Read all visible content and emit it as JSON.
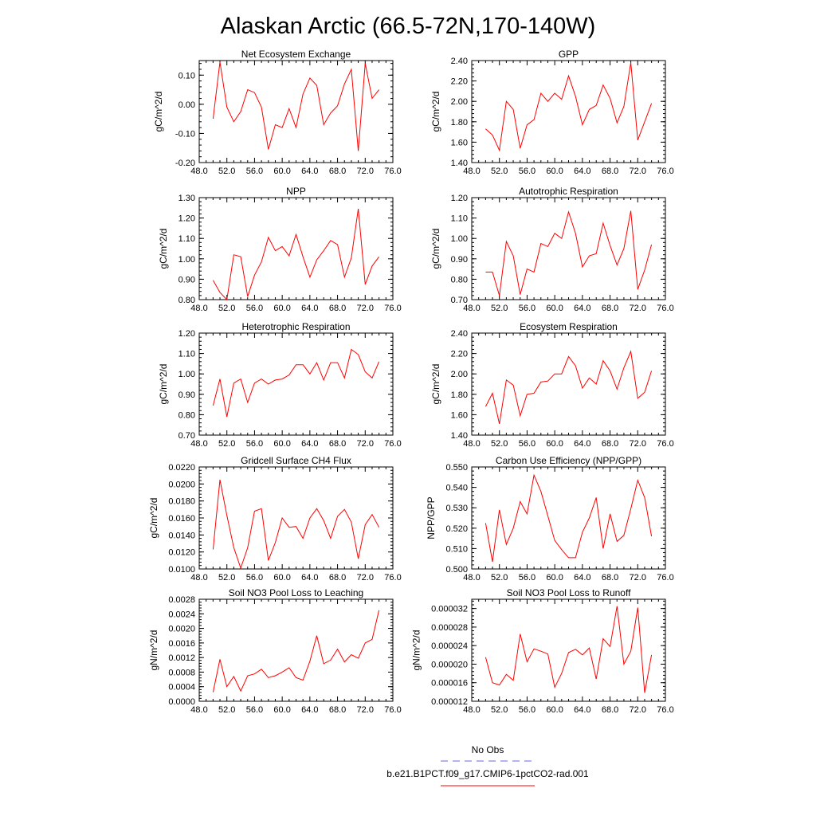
{
  "figure": {
    "title": "Alaskan Arctic (66.5-72N,170-140W)"
  },
  "legend": {
    "entries": [
      {
        "label": "No Obs",
        "color": "#6a6ad8",
        "dash": true
      },
      {
        "label": "b.e21.B1PCT.f09_g17.CMIP6-1pctCO2-rad.001",
        "color": "#ff0000",
        "dash": false
      }
    ]
  },
  "colors": {
    "model": "#ff0000",
    "obs": "#6a6ad8"
  },
  "chart_data": [
    {
      "type": "line",
      "title": "Net Ecosystem Exchange",
      "ylabel": "gC/m^2/d",
      "xlim": [
        48,
        76
      ],
      "ylim": [
        -0.2,
        0.15
      ],
      "x_ticks": [
        "48.0",
        "52.0",
        "56.0",
        "60.0",
        "64.0",
        "68.0",
        "72.0",
        "76.0"
      ],
      "y_ticks": [
        {
          "v": -0.2,
          "l": "-0.20"
        },
        {
          "v": -0.1,
          "l": "-0.10"
        },
        {
          "v": 0.0,
          "l": "0.00"
        },
        {
          "v": 0.1,
          "l": "0.10"
        }
      ],
      "series": [
        {
          "x": [
            50,
            51,
            52,
            53,
            54,
            55,
            56,
            57,
            58,
            59,
            60,
            61,
            62,
            63,
            64,
            65,
            66,
            67,
            68,
            69,
            70,
            71,
            72,
            73,
            74
          ],
          "values": [
            -0.05,
            0.145,
            -0.01,
            -0.06,
            -0.025,
            0.05,
            0.04,
            -0.01,
            -0.155,
            -0.07,
            -0.08,
            -0.015,
            -0.08,
            0.035,
            0.09,
            0.065,
            -0.07,
            -0.03,
            -0.005,
            0.07,
            0.12,
            -0.16,
            0.14,
            0.02,
            0.05
          ]
        }
      ]
    },
    {
      "type": "line",
      "title": "GPP",
      "ylabel": "gC/m^2/d",
      "xlim": [
        48,
        76
      ],
      "ylim": [
        1.4,
        2.4
      ],
      "x_ticks": [
        "48.0",
        "52.0",
        "56.0",
        "60.0",
        "64.0",
        "68.0",
        "72.0",
        "76.0"
      ],
      "y_ticks": [
        {
          "v": 1.4,
          "l": "1.40"
        },
        {
          "v": 1.6,
          "l": "1.60"
        },
        {
          "v": 1.8,
          "l": "1.80"
        },
        {
          "v": 2.0,
          "l": "2.00"
        },
        {
          "v": 2.2,
          "l": "2.20"
        },
        {
          "v": 2.4,
          "l": "2.40"
        }
      ],
      "series": [
        {
          "x": [
            50,
            51,
            52,
            53,
            54,
            55,
            56,
            57,
            58,
            59,
            60,
            61,
            62,
            63,
            64,
            65,
            66,
            67,
            68,
            69,
            70,
            71,
            72,
            73,
            74
          ],
          "values": [
            1.73,
            1.67,
            1.52,
            2.0,
            1.92,
            1.54,
            1.77,
            1.82,
            2.08,
            2.0,
            2.08,
            2.02,
            2.25,
            2.05,
            1.77,
            1.92,
            1.96,
            2.16,
            2.03,
            1.79,
            1.95,
            2.38,
            1.62,
            1.8,
            1.98
          ]
        }
      ]
    },
    {
      "type": "line",
      "title": "NPP",
      "ylabel": "gC/m^2/d",
      "xlim": [
        48,
        76
      ],
      "ylim": [
        0.8,
        1.3
      ],
      "x_ticks": [
        "48.0",
        "52.0",
        "56.0",
        "60.0",
        "64.0",
        "68.0",
        "72.0",
        "76.0"
      ],
      "y_ticks": [
        {
          "v": 0.8,
          "l": "0.80"
        },
        {
          "v": 0.9,
          "l": "0.90"
        },
        {
          "v": 1.0,
          "l": "1.00"
        },
        {
          "v": 1.1,
          "l": "1.10"
        },
        {
          "v": 1.2,
          "l": "1.20"
        },
        {
          "v": 1.3,
          "l": "1.30"
        }
      ],
      "series": [
        {
          "x": [
            50,
            51,
            52,
            53,
            54,
            55,
            56,
            57,
            58,
            59,
            60,
            61,
            62,
            63,
            64,
            65,
            66,
            67,
            68,
            69,
            70,
            71,
            72,
            73,
            74
          ],
          "values": [
            0.895,
            0.835,
            0.8,
            1.02,
            1.01,
            0.815,
            0.92,
            0.985,
            1.105,
            1.04,
            1.06,
            1.015,
            1.12,
            1.01,
            0.91,
            0.995,
            1.04,
            1.09,
            1.07,
            0.91,
            1.005,
            1.245,
            0.875,
            0.965,
            1.01
          ]
        }
      ]
    },
    {
      "type": "line",
      "title": "Autotrophic Respiration",
      "ylabel": "gC/m^2/d",
      "xlim": [
        48,
        76
      ],
      "ylim": [
        0.7,
        1.2
      ],
      "x_ticks": [
        "48.0",
        "52.0",
        "56.0",
        "60.0",
        "64.0",
        "68.0",
        "72.0",
        "76.0"
      ],
      "y_ticks": [
        {
          "v": 0.7,
          "l": "0.70"
        },
        {
          "v": 0.8,
          "l": "0.80"
        },
        {
          "v": 0.9,
          "l": "0.90"
        },
        {
          "v": 1.0,
          "l": "1.00"
        },
        {
          "v": 1.1,
          "l": "1.10"
        },
        {
          "v": 1.2,
          "l": "1.20"
        }
      ],
      "series": [
        {
          "x": [
            50,
            51,
            52,
            53,
            54,
            55,
            56,
            57,
            58,
            59,
            60,
            61,
            62,
            63,
            64,
            65,
            66,
            67,
            68,
            69,
            70,
            71,
            72,
            73,
            74
          ],
          "values": [
            0.835,
            0.835,
            0.72,
            0.985,
            0.915,
            0.725,
            0.85,
            0.835,
            0.975,
            0.96,
            1.025,
            1.0,
            1.13,
            1.025,
            0.86,
            0.915,
            0.925,
            1.075,
            0.965,
            0.87,
            0.95,
            1.135,
            0.75,
            0.845,
            0.97
          ]
        }
      ]
    },
    {
      "type": "line",
      "title": "Heterotrophic Respiration",
      "ylabel": "gC/m^2/d",
      "xlim": [
        48,
        76
      ],
      "ylim": [
        0.7,
        1.2
      ],
      "x_ticks": [
        "48.0",
        "52.0",
        "56.0",
        "60.0",
        "64.0",
        "68.0",
        "72.0",
        "76.0"
      ],
      "y_ticks": [
        {
          "v": 0.7,
          "l": "0.70"
        },
        {
          "v": 0.8,
          "l": "0.80"
        },
        {
          "v": 0.9,
          "l": "0.90"
        },
        {
          "v": 1.0,
          "l": "1.00"
        },
        {
          "v": 1.1,
          "l": "1.10"
        },
        {
          "v": 1.2,
          "l": "1.20"
        }
      ],
      "series": [
        {
          "x": [
            50,
            51,
            52,
            53,
            54,
            55,
            56,
            57,
            58,
            59,
            60,
            61,
            62,
            63,
            64,
            65,
            66,
            67,
            68,
            69,
            70,
            71,
            72,
            73,
            74
          ],
          "values": [
            0.845,
            0.975,
            0.79,
            0.955,
            0.975,
            0.86,
            0.955,
            0.975,
            0.95,
            0.97,
            0.975,
            0.995,
            1.045,
            1.045,
            1.0,
            1.055,
            0.97,
            1.055,
            1.055,
            0.98,
            1.12,
            1.095,
            1.01,
            0.98,
            1.06
          ]
        }
      ]
    },
    {
      "type": "line",
      "title": "Ecosystem Respiration",
      "ylabel": "gC/m^2/d",
      "xlim": [
        48,
        76
      ],
      "ylim": [
        1.4,
        2.4
      ],
      "x_ticks": [
        "48.0",
        "52.0",
        "56.0",
        "60.0",
        "64.0",
        "68.0",
        "72.0",
        "76.0"
      ],
      "y_ticks": [
        {
          "v": 1.4,
          "l": "1.40"
        },
        {
          "v": 1.6,
          "l": "1.60"
        },
        {
          "v": 1.8,
          "l": "1.80"
        },
        {
          "v": 2.0,
          "l": "2.00"
        },
        {
          "v": 2.2,
          "l": "2.20"
        },
        {
          "v": 2.4,
          "l": "2.40"
        }
      ],
      "series": [
        {
          "x": [
            50,
            51,
            52,
            53,
            54,
            55,
            56,
            57,
            58,
            59,
            60,
            61,
            62,
            63,
            64,
            65,
            66,
            67,
            68,
            69,
            70,
            71,
            72,
            73,
            74
          ],
          "values": [
            1.68,
            1.81,
            1.51,
            1.94,
            1.89,
            1.59,
            1.8,
            1.81,
            1.92,
            1.93,
            2.0,
            2.0,
            2.17,
            2.08,
            1.86,
            1.96,
            1.9,
            2.13,
            2.03,
            1.85,
            2.06,
            2.22,
            1.76,
            1.82,
            2.03
          ]
        }
      ]
    },
    {
      "type": "line",
      "title": "Gridcell Surface CH4 Flux",
      "ylabel": "gC/m^2/d",
      "xlim": [
        48,
        76
      ],
      "ylim": [
        0.01,
        0.022
      ],
      "x_ticks": [
        "48.0",
        "52.0",
        "56.0",
        "60.0",
        "64.0",
        "68.0",
        "72.0",
        "76.0"
      ],
      "y_ticks": [
        {
          "v": 0.01,
          "l": "0.0100"
        },
        {
          "v": 0.012,
          "l": "0.0120"
        },
        {
          "v": 0.014,
          "l": "0.0140"
        },
        {
          "v": 0.016,
          "l": "0.0160"
        },
        {
          "v": 0.018,
          "l": "0.0180"
        },
        {
          "v": 0.02,
          "l": "0.0200"
        },
        {
          "v": 0.022,
          "l": "0.0220"
        }
      ],
      "series": [
        {
          "x": [
            50,
            51,
            52,
            53,
            54,
            55,
            56,
            57,
            58,
            59,
            60,
            61,
            62,
            63,
            64,
            65,
            66,
            67,
            68,
            69,
            70,
            71,
            72,
            73,
            74
          ],
          "values": [
            0.0123,
            0.0205,
            0.0163,
            0.0125,
            0.0101,
            0.0125,
            0.0168,
            0.0171,
            0.011,
            0.0131,
            0.016,
            0.0149,
            0.015,
            0.0136,
            0.016,
            0.0171,
            0.0157,
            0.0136,
            0.0162,
            0.017,
            0.0155,
            0.0112,
            0.0152,
            0.0164,
            0.0149
          ]
        }
      ]
    },
    {
      "type": "line",
      "title": "Carbon Use Efficiency (NPP/GPP)",
      "ylabel": "NPP/GPP",
      "xlim": [
        48,
        76
      ],
      "ylim": [
        0.5,
        0.55
      ],
      "x_ticks": [
        "48.0",
        "52.0",
        "56.0",
        "60.0",
        "64.0",
        "68.0",
        "72.0",
        "76.0"
      ],
      "y_ticks": [
        {
          "v": 0.5,
          "l": "0.500"
        },
        {
          "v": 0.51,
          "l": "0.510"
        },
        {
          "v": 0.52,
          "l": "0.520"
        },
        {
          "v": 0.53,
          "l": "0.530"
        },
        {
          "v": 0.54,
          "l": "0.540"
        },
        {
          "v": 0.55,
          "l": "0.550"
        }
      ],
      "series": [
        {
          "x": [
            50,
            51,
            52,
            53,
            54,
            55,
            56,
            57,
            58,
            59,
            60,
            61,
            62,
            63,
            64,
            65,
            66,
            67,
            68,
            69,
            70,
            71,
            72,
            73,
            74
          ],
          "values": [
            0.5225,
            0.5035,
            0.529,
            0.512,
            0.52,
            0.533,
            0.527,
            0.546,
            0.538,
            0.526,
            0.514,
            0.5095,
            0.5055,
            0.5055,
            0.518,
            0.525,
            0.535,
            0.51,
            0.527,
            0.5135,
            0.5165,
            0.5295,
            0.5435,
            0.535,
            0.516
          ]
        }
      ]
    },
    {
      "type": "line",
      "title": "Soil NO3 Pool Loss to Leaching",
      "ylabel": "gN/m^2/d",
      "xlim": [
        48,
        76
      ],
      "ylim": [
        0.0,
        0.0028
      ],
      "x_ticks": [
        "48.0",
        "52.0",
        "56.0",
        "60.0",
        "64.0",
        "68.0",
        "72.0",
        "76.0"
      ],
      "y_ticks": [
        {
          "v": 0.0,
          "l": "0.0000"
        },
        {
          "v": 0.0004,
          "l": "0.0004"
        },
        {
          "v": 0.0008,
          "l": "0.0008"
        },
        {
          "v": 0.0012,
          "l": "0.0012"
        },
        {
          "v": 0.0016,
          "l": "0.0016"
        },
        {
          "v": 0.002,
          "l": "0.0020"
        },
        {
          "v": 0.0024,
          "l": "0.0024"
        },
        {
          "v": 0.0028,
          "l": "0.0028"
        }
      ],
      "series": [
        {
          "x": [
            50,
            51,
            52,
            53,
            54,
            55,
            56,
            57,
            58,
            59,
            60,
            61,
            62,
            63,
            64,
            65,
            66,
            67,
            68,
            69,
            70,
            71,
            72,
            73,
            74
          ],
          "values": [
            0.00025,
            0.00115,
            0.0004,
            0.00068,
            0.00028,
            0.0007,
            0.00075,
            0.00088,
            0.00065,
            0.0007,
            0.0008,
            0.00092,
            0.00065,
            0.00058,
            0.0011,
            0.0018,
            0.00103,
            0.00113,
            0.00143,
            0.00108,
            0.00128,
            0.00118,
            0.0016,
            0.0017,
            0.0025
          ]
        }
      ]
    },
    {
      "type": "line",
      "title": "Soil NO3 Pool Loss to Runoff",
      "ylabel": "gN/m^2/d",
      "xlim": [
        48,
        76
      ],
      "ylim": [
        1.2e-05,
        3.4e-05
      ],
      "x_ticks": [
        "48.0",
        "52.0",
        "56.0",
        "60.0",
        "64.0",
        "68.0",
        "72.0",
        "76.0"
      ],
      "y_ticks": [
        {
          "v": 1.2e-05,
          "l": "0.000012"
        },
        {
          "v": 1.6e-05,
          "l": "0.000016"
        },
        {
          "v": 2e-05,
          "l": "0.000020"
        },
        {
          "v": 2.4e-05,
          "l": "0.000024"
        },
        {
          "v": 2.8e-05,
          "l": "0.000028"
        },
        {
          "v": 3.2e-05,
          "l": "0.000032"
        }
      ],
      "series": [
        {
          "x": [
            50,
            51,
            52,
            53,
            54,
            55,
            56,
            57,
            58,
            59,
            60,
            61,
            62,
            63,
            64,
            65,
            66,
            67,
            68,
            69,
            70,
            71,
            72,
            73,
            74
          ],
          "values": [
            2.15e-05,
            1.6e-05,
            1.55e-05,
            1.78e-05,
            1.65e-05,
            2.65e-05,
            2.05e-05,
            2.33e-05,
            2.28e-05,
            2.22e-05,
            1.5e-05,
            1.8e-05,
            2.25e-05,
            2.32e-05,
            2.2e-05,
            2.35e-05,
            1.68e-05,
            2.55e-05,
            2.38e-05,
            3.25e-05,
            2e-05,
            2.28e-05,
            3.22e-05,
            1.38e-05,
            2.2e-05
          ]
        }
      ]
    }
  ]
}
